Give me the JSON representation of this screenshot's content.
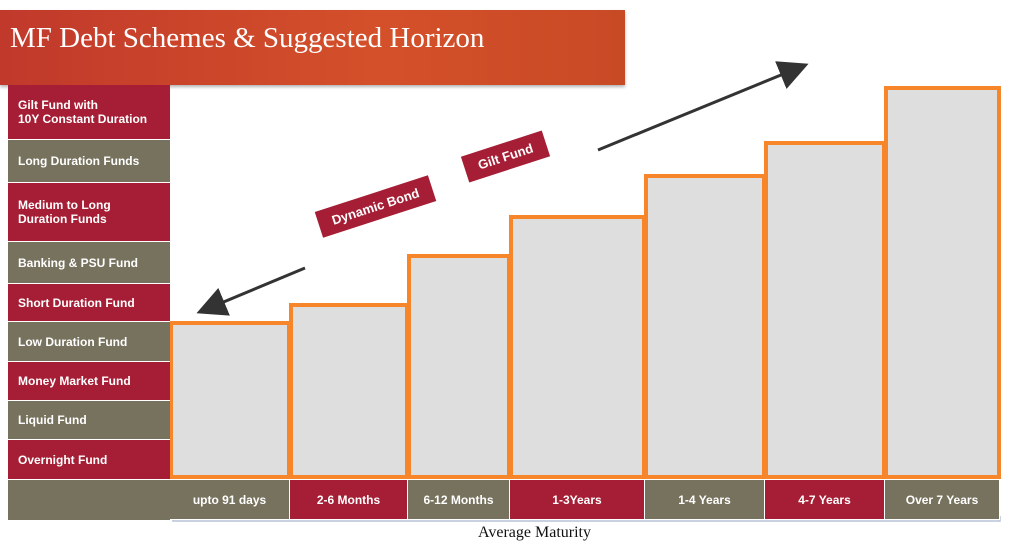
{
  "title": "MF Debt Schemes & Suggested Horizon",
  "fund_types": [
    "Gilt Fund with\n10Y Constant Duration",
    "Long Duration Funds",
    "Medium to Long\nDuration Funds",
    "Banking & PSU Fund",
    "Short Duration Fund",
    "Low Duration Fund",
    "Money Market Fund",
    "Liquid Fund",
    "Overnight Fund"
  ],
  "maturity_buckets": [
    "upto 91 days",
    "2-6 Months",
    "6-12 Months",
    "1-3Years",
    "1-4 Years",
    "4-7 Years",
    "Over 7 Years"
  ],
  "arrow_labels": [
    "Dynamic Bond",
    "Gilt Fund"
  ],
  "axis_label": "Average Maturity"
}
